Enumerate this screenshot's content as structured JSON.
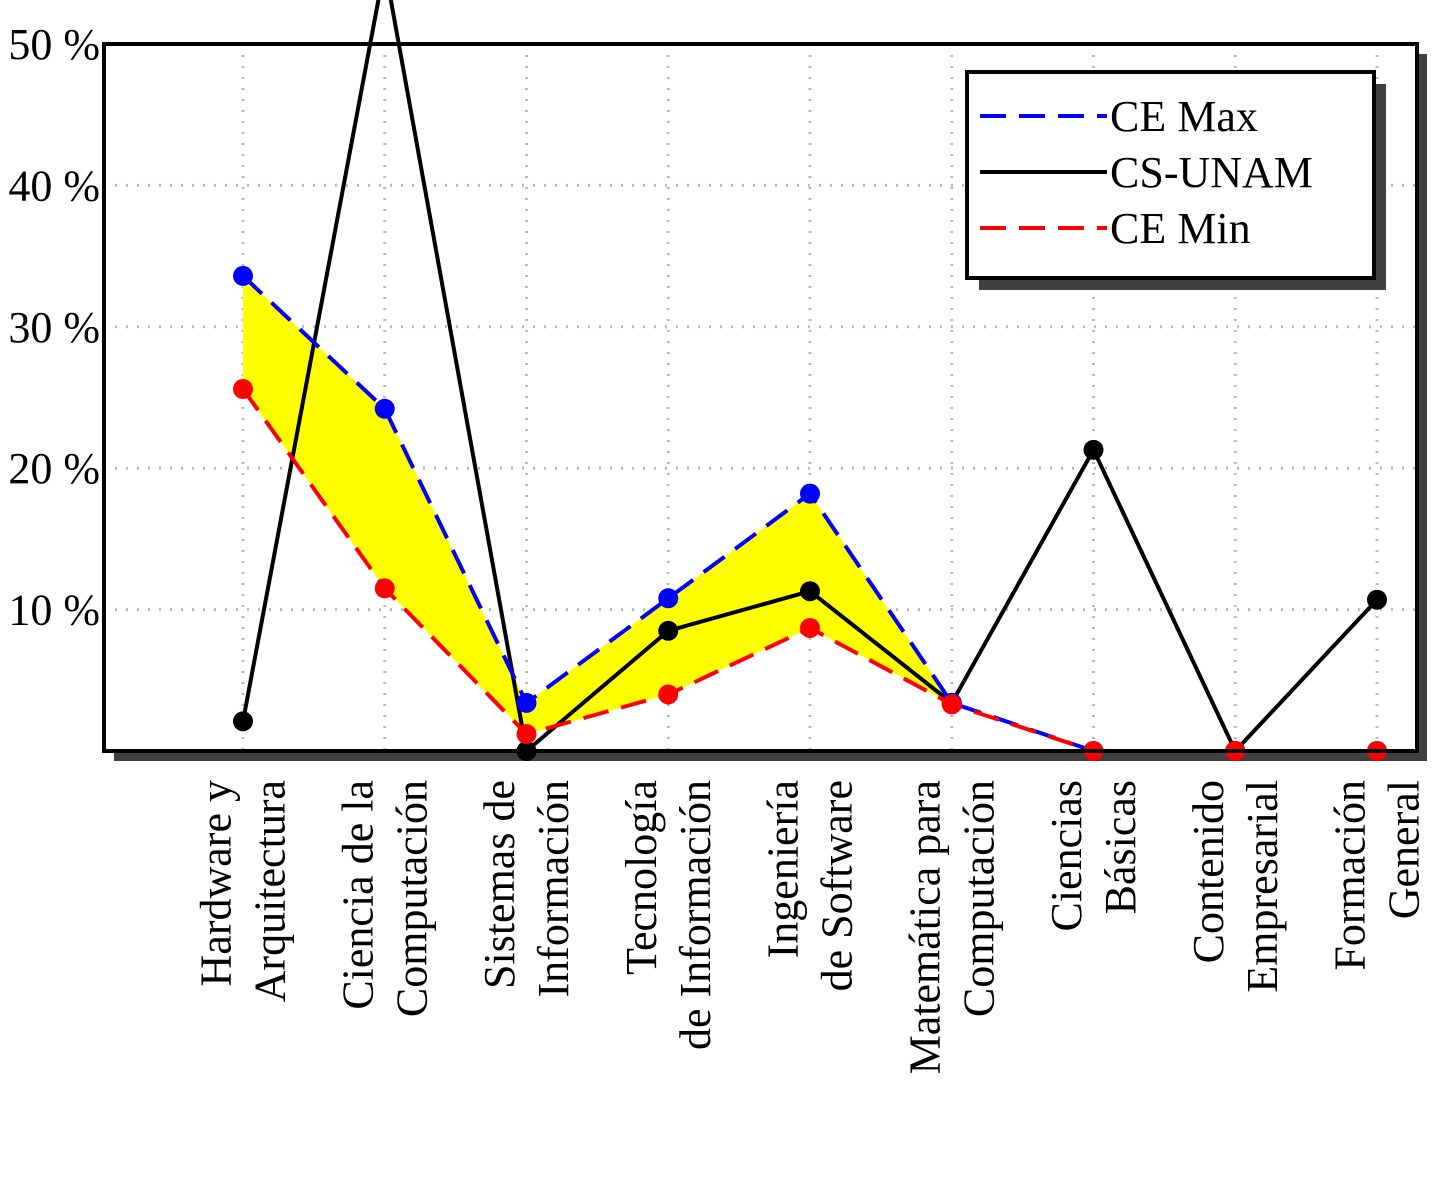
{
  "chart_data": {
    "type": "line",
    "categories": [
      [
        "Hardware y",
        "Arquitectura"
      ],
      [
        "Ciencia de la",
        "Computación"
      ],
      [
        "Sistemas de",
        "Información"
      ],
      [
        "Tecnología",
        "de Información"
      ],
      [
        "Ingeniería",
        "de Software"
      ],
      [
        "Matemática para",
        "Computación"
      ],
      [
        "Ciencias",
        "Básicas"
      ],
      [
        "Contenido",
        "Empresarial"
      ],
      [
        "Formación",
        "General"
      ]
    ],
    "series": [
      {
        "name": "CE Max",
        "color": "#0000ff",
        "dashed": true,
        "values": [
          33.6,
          24.2,
          3.4,
          10.8,
          18.2,
          3.4,
          0,
          0,
          0
        ]
      },
      {
        "name": "CS-UNAM",
        "color": "#000000",
        "dashed": false,
        "values": [
          2.1,
          55.5,
          0,
          8.5,
          11.3,
          3.4,
          21.3,
          0,
          10.7
        ]
      },
      {
        "name": "CE Min",
        "color": "#ff0000",
        "dashed": true,
        "values": [
          25.6,
          11.5,
          1.2,
          4.0,
          8.7,
          3.3,
          0,
          0,
          0
        ]
      }
    ],
    "fill_between": {
      "series": [
        0,
        2
      ],
      "color": "#ffff00"
    },
    "ylim": [
      0,
      50
    ],
    "yticks": [
      {
        "value": 10,
        "label": "10 %"
      },
      {
        "value": 20,
        "label": "20 %"
      },
      {
        "value": 30,
        "label": "30 %"
      },
      {
        "value": 40,
        "label": "40 %"
      },
      {
        "value": 50,
        "label": "50 %"
      }
    ],
    "grid": true,
    "legend": "upper right"
  }
}
